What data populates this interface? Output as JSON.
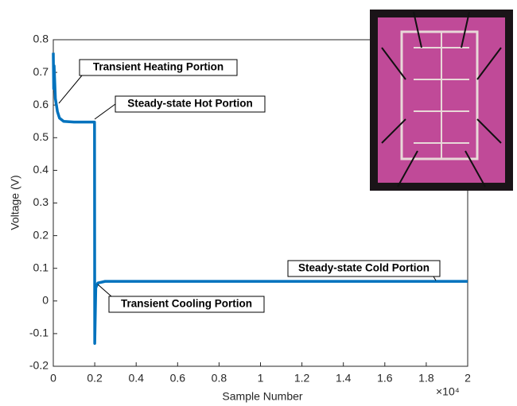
{
  "chart_data": {
    "type": "line",
    "x_label": "Sample Number",
    "y_label": "Voltage (V)",
    "x_exponent_label": "×10⁴",
    "xlim": [
      0,
      20000
    ],
    "ylim": [
      -0.2,
      0.8
    ],
    "xticks": [
      0,
      {
        "value": 2000,
        "label": "0.2"
      },
      {
        "value": 4000,
        "label": "0.4"
      },
      {
        "value": 6000,
        "label": "0.6"
      },
      {
        "value": 8000,
        "label": "0.8"
      },
      {
        "value": 10000,
        "label": "1"
      },
      {
        "value": 12000,
        "label": "1.2"
      },
      {
        "value": 14000,
        "label": "1.4"
      },
      {
        "value": 16000,
        "label": "1.6"
      },
      {
        "value": 18000,
        "label": "1.8"
      },
      {
        "value": 20000,
        "label": "2"
      }
    ],
    "yticks": [
      -0.2,
      -0.1,
      0,
      0.1,
      0.2,
      0.3,
      0.4,
      0.5,
      0.6,
      0.7,
      0.8
    ],
    "series": [
      {
        "color": "#0072bd",
        "x": [
          0,
          20,
          40,
          100,
          200,
          300,
          500,
          1000,
          1500,
          1990,
          2000,
          2050,
          2150,
          2500,
          5000,
          10000,
          15000,
          20000
        ],
        "values": [
          0.76,
          0.65,
          0.72,
          0.62,
          0.58,
          0.56,
          0.55,
          0.548,
          0.548,
          0.548,
          -0.13,
          0.04,
          0.055,
          0.06,
          0.06,
          0.06,
          0.06,
          0.06
        ]
      }
    ],
    "annotations": [
      "Transient Heating Portion",
      "Steady-state Hot Portion",
      "Steady-state Cold Portion",
      "Transient Cooling Portion"
    ]
  }
}
